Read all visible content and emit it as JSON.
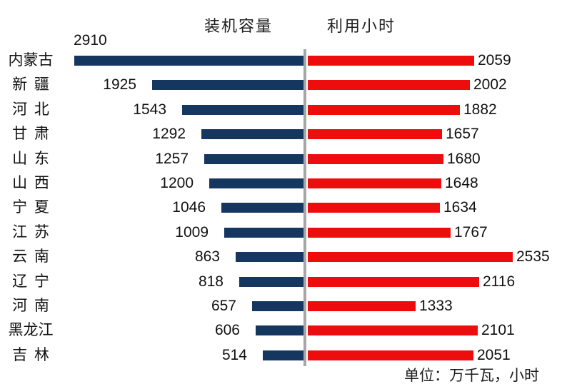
{
  "chart_data": {
    "type": "bar",
    "variant": "diverging-horizontal-tornado",
    "title": "",
    "categories": [
      "内蒙古",
      "新 疆",
      "河 北",
      "甘 肃",
      "山 东",
      "山 西",
      "宁 夏",
      "江 苏",
      "云 南",
      "辽 宁",
      "河 南",
      "黑龙江",
      "吉 林"
    ],
    "series": [
      {
        "name": "装机容量",
        "side": "left",
        "color": "#15365F",
        "values": [
          2910,
          1925,
          1543,
          1292,
          1257,
          1200,
          1046,
          1009,
          863,
          818,
          657,
          606,
          514
        ]
      },
      {
        "name": "利用小时",
        "side": "right",
        "color": "#EE0D0D",
        "values": [
          2059,
          2002,
          1882,
          1657,
          1680,
          1648,
          1634,
          1767,
          2535,
          2116,
          1333,
          2101,
          2051
        ]
      }
    ],
    "unit_note": "单位：万千瓦，小时",
    "value_labels": "outside-end",
    "legend_position": "top",
    "grid": false,
    "axis": {
      "divider_color": "#A6A6A6",
      "left_axis_max": 2910,
      "right_axis_max": 2535
    },
    "background": "#FFFFFF"
  }
}
